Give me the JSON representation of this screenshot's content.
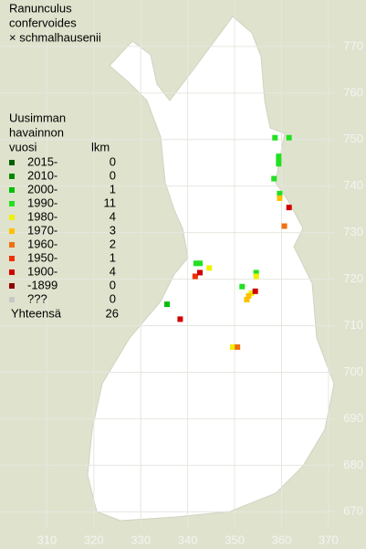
{
  "title_lines": [
    "Ranunculus",
    "confervoides",
    "× schmalhausenii"
  ],
  "legend": {
    "header": [
      "Uusimman",
      "havainnon",
      "vuosi"
    ],
    "count_header": "lkm",
    "rows": [
      {
        "label": "2015-",
        "count": 0,
        "color": "#006000"
      },
      {
        "label": "2010-",
        "count": 0,
        "color": "#008800"
      },
      {
        "label": "2000-",
        "count": 1,
        "color": "#00c000"
      },
      {
        "label": "1990-",
        "count": 11,
        "color": "#22e022"
      },
      {
        "label": "1980-",
        "count": 4,
        "color": "#f0f000"
      },
      {
        "label": "1970-",
        "count": 3,
        "color": "#ffc000"
      },
      {
        "label": "1960-",
        "count": 2,
        "color": "#f07010"
      },
      {
        "label": "1950-",
        "count": 1,
        "color": "#f03000"
      },
      {
        "label": "1900-",
        "count": 4,
        "color": "#d00000"
      },
      {
        "label": "-1899",
        "count": 0,
        "color": "#900000"
      },
      {
        "label": "???",
        "count": 0,
        "color": "#c8c8c8"
      }
    ],
    "total_label": "Yhteensä",
    "total": 26
  },
  "xlim": [
    300,
    378
  ],
  "ylim": [
    662,
    780
  ],
  "xticks": [
    310,
    320,
    330,
    340,
    350,
    360,
    370
  ],
  "yticks": [
    670,
    680,
    690,
    700,
    710,
    720,
    730,
    740,
    750,
    760,
    770
  ],
  "points": [
    {
      "x": 358.6,
      "y": 750.4,
      "period": 3
    },
    {
      "x": 361.6,
      "y": 750.4,
      "period": 3
    },
    {
      "x": 359.4,
      "y": 746.4,
      "period": 3
    },
    {
      "x": 359.4,
      "y": 745.6,
      "period": 3
    },
    {
      "x": 359.4,
      "y": 744.8,
      "period": 3
    },
    {
      "x": 358.4,
      "y": 741.6,
      "period": 3
    },
    {
      "x": 359.6,
      "y": 738.4,
      "period": 3
    },
    {
      "x": 341.8,
      "y": 723.4,
      "period": 3
    },
    {
      "x": 342.6,
      "y": 723.4,
      "period": 3
    },
    {
      "x": 354.6,
      "y": 721.4,
      "period": 3
    },
    {
      "x": 351.6,
      "y": 718.4,
      "period": 3
    },
    {
      "x": 335.6,
      "y": 714.6,
      "period": 2
    },
    {
      "x": 344.6,
      "y": 722.4,
      "period": 4
    },
    {
      "x": 354.6,
      "y": 720.6,
      "period": 4
    },
    {
      "x": 353.6,
      "y": 717.0,
      "period": 4
    },
    {
      "x": 349.6,
      "y": 705.4,
      "period": 4
    },
    {
      "x": 359.6,
      "y": 737.4,
      "period": 5
    },
    {
      "x": 352.6,
      "y": 715.6,
      "period": 5
    },
    {
      "x": 353.0,
      "y": 716.4,
      "period": 5
    },
    {
      "x": 360.6,
      "y": 731.4,
      "period": 6
    },
    {
      "x": 350.6,
      "y": 705.4,
      "period": 6
    },
    {
      "x": 341.6,
      "y": 720.6,
      "period": 7
    },
    {
      "x": 361.6,
      "y": 735.4,
      "period": 8
    },
    {
      "x": 342.6,
      "y": 721.4,
      "period": 8
    },
    {
      "x": 354.4,
      "y": 717.4,
      "period": 8
    },
    {
      "x": 338.4,
      "y": 711.4,
      "period": 8
    }
  ]
}
